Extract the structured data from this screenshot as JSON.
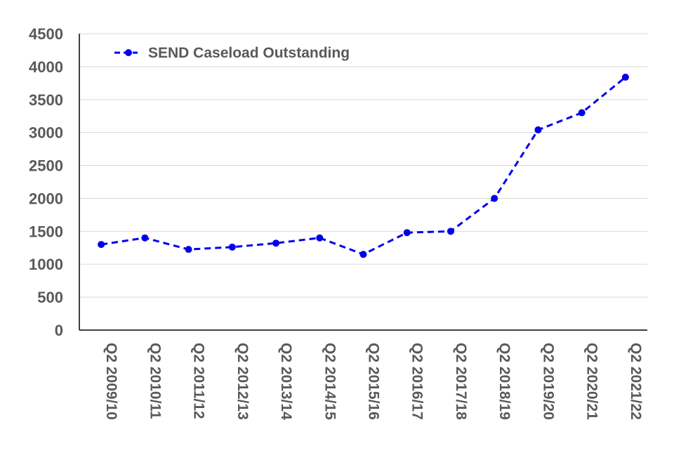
{
  "chart_data": {
    "type": "line",
    "title": "",
    "xlabel": "",
    "ylabel": "",
    "ylim": [
      0,
      4500
    ],
    "yticks": [
      0,
      500,
      1000,
      1500,
      2000,
      2500,
      3000,
      3500,
      4000,
      4500
    ],
    "grid": true,
    "legend_position": "top-left",
    "categories": [
      "Q2 2009/10",
      "Q2 2010/11",
      "Q2 2011/12",
      "Q2 2012/13",
      "Q2 2013/14",
      "Q2 2014/15",
      "Q2 2015/16",
      "Q2 2016/17",
      "Q2 2017/18",
      "Q2 2018/19",
      "Q2 2019/20",
      "Q2 2020/21",
      "Q2 2021/22"
    ],
    "series": [
      {
        "name": "SEND Caseload Outstanding",
        "color": "#0000ee",
        "style": "dashed-markers",
        "values": [
          1300,
          1400,
          1225,
          1260,
          1320,
          1400,
          1150,
          1480,
          1500,
          2000,
          3040,
          3300,
          3840
        ]
      }
    ]
  }
}
